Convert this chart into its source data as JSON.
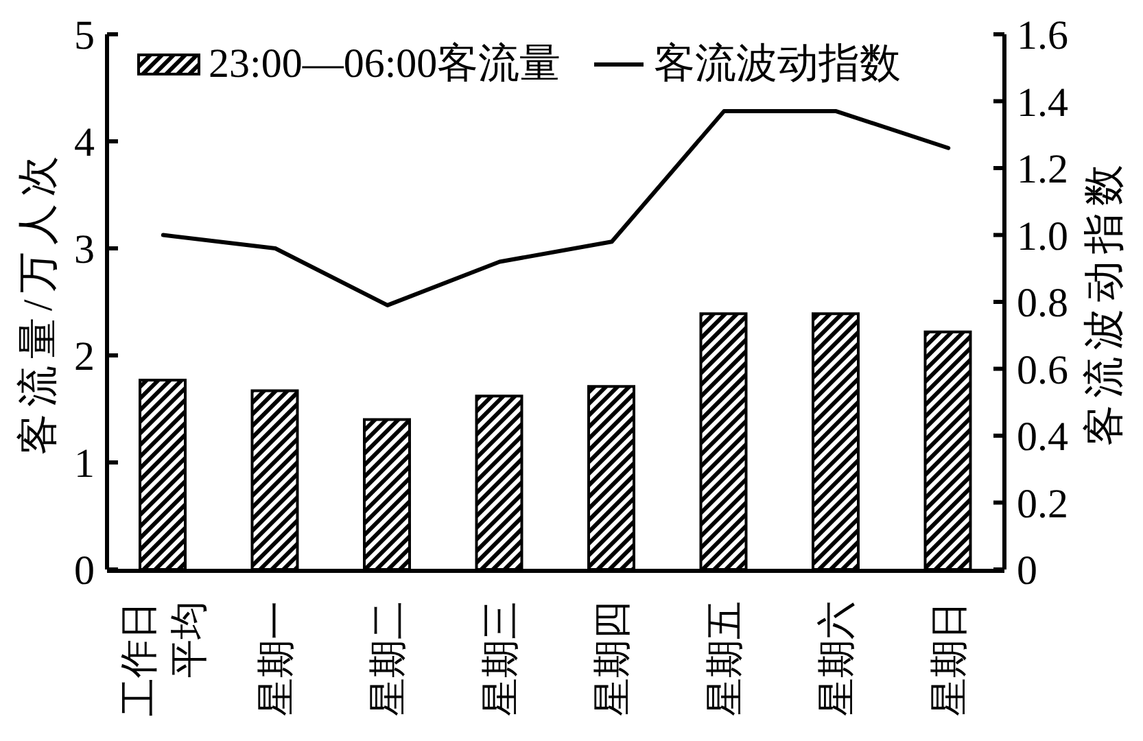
{
  "chart_data": {
    "type": "bar",
    "categories": [
      "工作日平均",
      "星期一",
      "星期二",
      "星期三",
      "星期四",
      "星期五",
      "星期六",
      "星期日"
    ],
    "series": [
      {
        "name": "23:00—06:00客流量",
        "color": "#000000",
        "values": [
          1.77,
          1.67,
          1.4,
          1.62,
          1.71,
          2.39,
          2.39,
          2.22
        ]
      },
      {
        "name": "客流波动指数",
        "type": "line",
        "axis": "y2",
        "color": "#000000",
        "values": [
          1.0,
          0.96,
          0.79,
          0.92,
          0.98,
          1.37,
          1.37,
          1.26
        ]
      }
    ],
    "ylabel": "客流量/万人次",
    "y2label": "客流波动指数",
    "ylim": [
      0,
      5
    ],
    "yticks": [
      0,
      1,
      2,
      3,
      4,
      5
    ],
    "y2lim": [
      0,
      1.6
    ],
    "y2ticks": [
      0,
      0.2,
      0.4,
      0.6,
      0.8,
      {
        "value": 1,
        "label": "1.0"
      },
      1.2,
      1.4,
      1.6
    ],
    "legend": "top",
    "marker": "none",
    "line_style": "solid"
  }
}
